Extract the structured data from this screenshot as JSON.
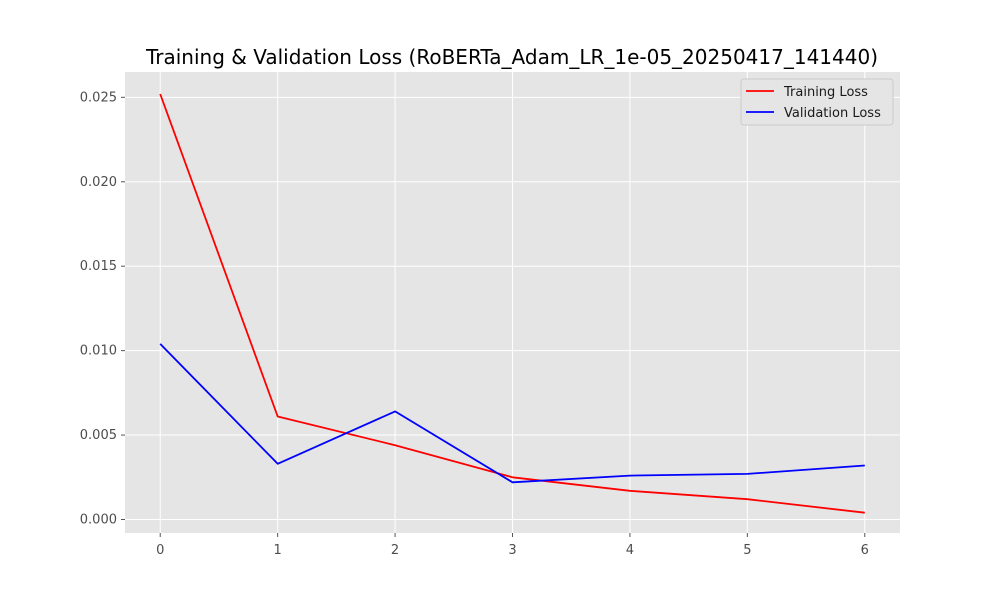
{
  "chart_data": {
    "type": "line",
    "title": "Training & Validation Loss (RoBERTa_Adam_LR_1e-05_20250417_141440)",
    "xlabel": "",
    "ylabel": "",
    "x": [
      0,
      1,
      2,
      3,
      4,
      5,
      6
    ],
    "xticks": [
      "0",
      "1",
      "2",
      "3",
      "4",
      "5",
      "6"
    ],
    "yticks": [
      0.0,
      0.005,
      0.01,
      0.015,
      0.02,
      0.025
    ],
    "ytick_labels": [
      "0.000",
      "0.005",
      "0.010",
      "0.015",
      "0.020",
      "0.025"
    ],
    "xlim": [
      -0.3,
      6.3
    ],
    "ylim": [
      -0.0008,
      0.0265
    ],
    "grid": true,
    "legend_position": "top-right",
    "series": [
      {
        "name": "Training Loss",
        "color": "#ff0000",
        "values": [
          0.0252,
          0.0061,
          0.0044,
          0.0025,
          0.0017,
          0.0012,
          0.0004
        ]
      },
      {
        "name": "Validation Loss",
        "color": "#0000ff",
        "values": [
          0.0104,
          0.0033,
          0.0064,
          0.0022,
          0.0026,
          0.0027,
          0.0032
        ]
      }
    ]
  }
}
